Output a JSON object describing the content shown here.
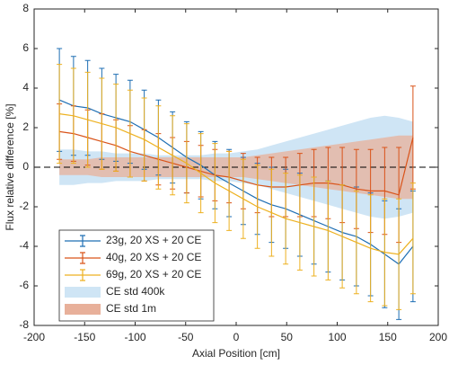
{
  "chart_data": {
    "type": "line",
    "xlabel": "Axial Position [cm]",
    "ylabel": "Flux relative difference [%]",
    "xlim": [
      -200,
      200
    ],
    "xticks": [
      -200,
      -150,
      -100,
      -50,
      0,
      50,
      100,
      150,
      200
    ],
    "ylim": [
      -8,
      8
    ],
    "yticks": [
      -8,
      -6,
      -4,
      -2,
      0,
      2,
      4,
      6,
      8
    ],
    "legend": "lower left",
    "x": [
      -175,
      -161,
      -147,
      -133,
      -119,
      -105,
      -91,
      -77,
      -63,
      -49,
      -35,
      -21,
      -7,
      7,
      21,
      35,
      49,
      63,
      77,
      91,
      105,
      119,
      133,
      147,
      161,
      175
    ],
    "bands": [
      {
        "name": "CE std 400k",
        "color": "#cfe5f5",
        "values": [
          0.9,
          0.9,
          0.8,
          0.8,
          0.7,
          0.7,
          0.7,
          0.6,
          0.6,
          0.6,
          0.6,
          0.7,
          0.7,
          0.8,
          0.9,
          1.1,
          1.3,
          1.5,
          1.7,
          1.9,
          2.1,
          2.3,
          2.5,
          2.6,
          2.5,
          2.3
        ]
      },
      {
        "name": "CE std 1m",
        "color": "#e8b09a",
        "values": [
          0.4,
          0.4,
          0.4,
          0.5,
          0.5,
          0.5,
          0.5,
          0.5,
          0.5,
          0.5,
          0.5,
          0.5,
          0.5,
          0.5,
          0.6,
          0.7,
          0.8,
          0.9,
          1.0,
          1.1,
          1.2,
          1.3,
          1.4,
          1.5,
          1.6,
          1.6
        ]
      }
    ],
    "series": [
      {
        "name": "23g, 20 XS + 20 CE",
        "color": "#1f6fb4",
        "values": [
          3.4,
          3.1,
          3.0,
          2.7,
          2.5,
          2.3,
          1.9,
          1.5,
          1.0,
          0.5,
          0.1,
          -0.4,
          -0.8,
          -1.2,
          -1.6,
          -1.9,
          -2.1,
          -2.4,
          -2.7,
          -3.0,
          -3.3,
          -3.5,
          -3.9,
          -4.4,
          -4.9,
          -4.0
        ],
        "errors": [
          2.6,
          2.5,
          2.4,
          2.3,
          2.2,
          2.1,
          2.0,
          1.9,
          1.8,
          1.8,
          1.7,
          1.7,
          1.7,
          1.7,
          1.8,
          1.9,
          2.0,
          2.1,
          2.2,
          2.3,
          2.4,
          2.5,
          2.6,
          2.7,
          2.8,
          2.8
        ]
      },
      {
        "name": "40g, 20 XS + 20 CE",
        "color": "#d95319",
        "values": [
          1.8,
          1.7,
          1.5,
          1.3,
          1.1,
          0.8,
          0.6,
          0.4,
          0.2,
          0.0,
          -0.2,
          -0.4,
          -0.5,
          -0.7,
          -0.9,
          -1.0,
          -1.0,
          -0.9,
          -0.8,
          -0.8,
          -0.9,
          -1.1,
          -1.2,
          -1.2,
          -1.4,
          1.5
        ],
        "errors": [
          1.4,
          1.4,
          1.4,
          1.4,
          1.3,
          1.3,
          1.3,
          1.3,
          1.3,
          1.3,
          1.3,
          1.3,
          1.3,
          1.4,
          1.4,
          1.5,
          1.5,
          1.6,
          1.7,
          1.8,
          1.9,
          2.0,
          2.1,
          2.2,
          2.4,
          2.6
        ]
      },
      {
        "name": "69g, 20 XS + 20 CE",
        "color": "#edb120",
        "values": [
          2.7,
          2.6,
          2.4,
          2.2,
          2.0,
          1.7,
          1.4,
          1.0,
          0.6,
          0.2,
          -0.3,
          -0.8,
          -1.2,
          -1.6,
          -2.0,
          -2.3,
          -2.6,
          -2.8,
          -3.0,
          -3.2,
          -3.5,
          -3.8,
          -4.1,
          -4.3,
          -4.4,
          -3.6
        ],
        "errors": [
          2.5,
          2.4,
          2.4,
          2.3,
          2.2,
          2.2,
          2.1,
          2.1,
          2.0,
          2.0,
          2.0,
          2.0,
          2.0,
          2.0,
          2.1,
          2.2,
          2.3,
          2.4,
          2.5,
          2.5,
          2.6,
          2.6,
          2.7,
          2.7,
          2.8,
          2.8
        ]
      }
    ]
  }
}
